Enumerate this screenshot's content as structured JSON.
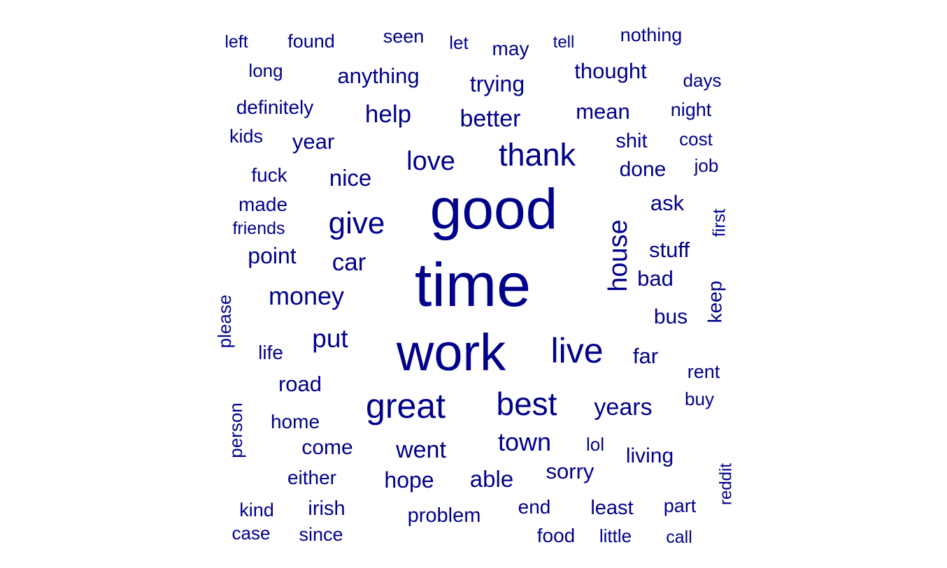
{
  "chart_data": {
    "type": "wordcloud",
    "color": "#00008B",
    "words": [
      {
        "word": "good",
        "weight": 10
      },
      {
        "word": "time",
        "weight": 10
      },
      {
        "word": "work",
        "weight": 10
      },
      {
        "word": "thank",
        "weight": 6
      },
      {
        "word": "live",
        "weight": 6
      },
      {
        "word": "great",
        "weight": 6
      },
      {
        "word": "best",
        "weight": 6
      },
      {
        "word": "give",
        "weight": 6
      },
      {
        "word": "house",
        "weight": 5
      },
      {
        "word": "love",
        "weight": 5
      },
      {
        "word": "money",
        "weight": 5
      },
      {
        "word": "help",
        "weight": 4
      },
      {
        "word": "better",
        "weight": 4
      },
      {
        "word": "nice",
        "weight": 4
      },
      {
        "word": "put",
        "weight": 4
      },
      {
        "word": "car",
        "weight": 4
      },
      {
        "word": "town",
        "weight": 4
      },
      {
        "word": "went",
        "weight": 4
      },
      {
        "word": "years",
        "weight": 4
      },
      {
        "word": "anything",
        "weight": 3
      },
      {
        "word": "trying",
        "weight": 3
      },
      {
        "word": "thought",
        "weight": 3
      },
      {
        "word": "mean",
        "weight": 3
      },
      {
        "word": "year",
        "weight": 3
      },
      {
        "word": "point",
        "weight": 3
      },
      {
        "word": "road",
        "weight": 3
      },
      {
        "word": "come",
        "weight": 3
      },
      {
        "word": "hope",
        "weight": 3
      },
      {
        "word": "able",
        "weight": 3
      },
      {
        "word": "sorry",
        "weight": 3
      },
      {
        "word": "far",
        "weight": 3
      },
      {
        "word": "done",
        "weight": 3
      },
      {
        "word": "stuff",
        "weight": 3
      },
      {
        "word": "bad",
        "weight": 3
      },
      {
        "word": "problem",
        "weight": 3
      },
      {
        "word": "living",
        "weight": 3
      },
      {
        "word": "seen",
        "weight": 2
      },
      {
        "word": "may",
        "weight": 2
      },
      {
        "word": "found",
        "weight": 2
      },
      {
        "word": "nothing",
        "weight": 2
      },
      {
        "word": "definitely",
        "weight": 2
      },
      {
        "word": "night",
        "weight": 2
      },
      {
        "word": "fuck",
        "weight": 2
      },
      {
        "word": "made",
        "weight": 2
      },
      {
        "word": "shit",
        "weight": 2
      },
      {
        "word": "ask",
        "weight": 2
      },
      {
        "word": "bus",
        "weight": 2
      },
      {
        "word": "keep",
        "weight": 2
      },
      {
        "word": "rent",
        "weight": 2
      },
      {
        "word": "home",
        "weight": 2
      },
      {
        "word": "either",
        "weight": 2
      },
      {
        "word": "irish",
        "weight": 2
      },
      {
        "word": "end",
        "weight": 2
      },
      {
        "word": "least",
        "weight": 2
      },
      {
        "word": "part",
        "weight": 2
      },
      {
        "word": "food",
        "weight": 2
      },
      {
        "word": "life",
        "weight": 2
      },
      {
        "word": "person",
        "weight": 2
      },
      {
        "word": "please",
        "weight": 2
      },
      {
        "word": "left",
        "weight": 1
      },
      {
        "word": "let",
        "weight": 1
      },
      {
        "word": "tell",
        "weight": 1
      },
      {
        "word": "long",
        "weight": 1
      },
      {
        "word": "days",
        "weight": 1
      },
      {
        "word": "kids",
        "weight": 1
      },
      {
        "word": "cost",
        "weight": 1
      },
      {
        "word": "job",
        "weight": 1
      },
      {
        "word": "friends",
        "weight": 1
      },
      {
        "word": "first",
        "weight": 1
      },
      {
        "word": "buy",
        "weight": 1
      },
      {
        "word": "lol",
        "weight": 1
      },
      {
        "word": "reddit",
        "weight": 1
      },
      {
        "word": "kind",
        "weight": 1
      },
      {
        "word": "case",
        "weight": 1
      },
      {
        "word": "since",
        "weight": 1
      },
      {
        "word": "little",
        "weight": 1
      },
      {
        "word": "call",
        "weight": 1
      }
    ]
  }
}
